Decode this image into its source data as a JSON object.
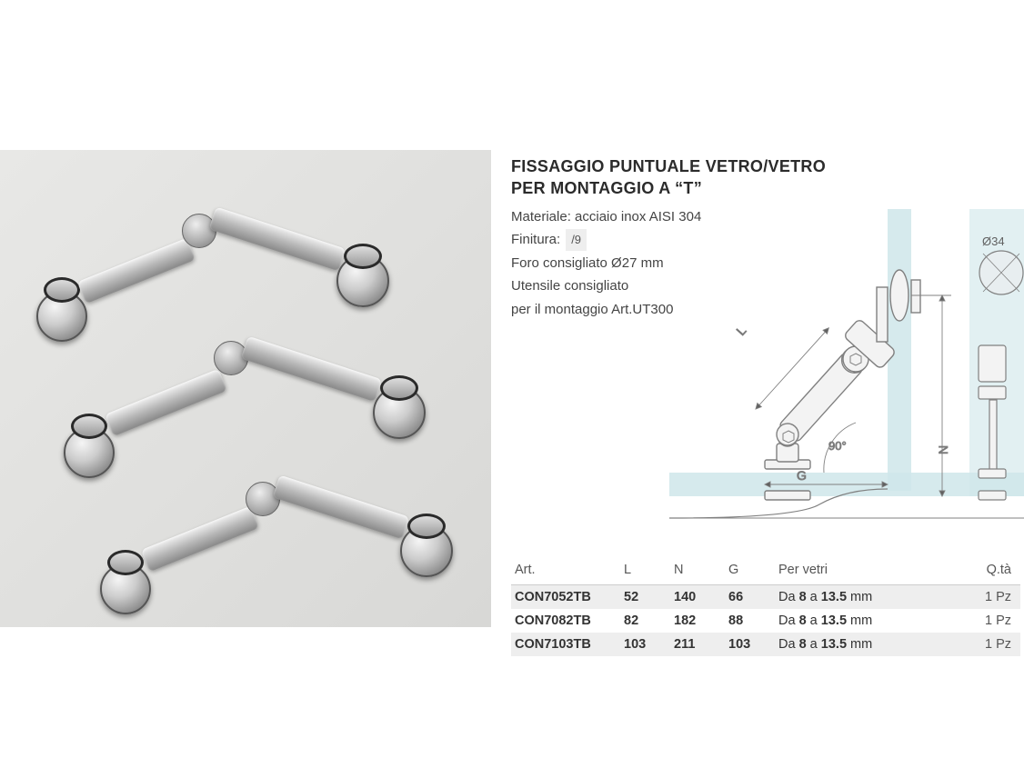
{
  "title_line1": "FISSAGGIO PUNTUALE VETRO/VETRO",
  "title_line2": "PER MONTAGGIO A “T”",
  "material_label": "Materiale: acciaio inox AISI 304",
  "finish_label": "Finitura:",
  "finish_value": "/9",
  "hole_label": "Foro consigliato Ø27 mm",
  "tool_line1": "Utensile consigliato",
  "tool_line2": "per il montaggio Art.UT300",
  "diagram": {
    "angle_label": "90°",
    "dim_L": "L",
    "dim_G": "G",
    "dim_N": "N",
    "dia_label": "Ø34",
    "glass_color": "#cfe6ea",
    "line_color": "#808080",
    "bg": "#ffffff"
  },
  "table": {
    "columns": [
      "Art.",
      "L",
      "N",
      "G",
      "Per vetri",
      "Q.tà"
    ],
    "rows": [
      {
        "art": "CON7052TB",
        "L": "52",
        "N": "140",
        "G": "66",
        "glass_pre": "Da ",
        "glass_b1": "8",
        "glass_mid": " a ",
        "glass_b2": "13.5",
        "glass_post": " mm",
        "qty": "1 Pz"
      },
      {
        "art": "CON7082TB",
        "L": "82",
        "N": "182",
        "G": "88",
        "glass_pre": "Da ",
        "glass_b1": "8",
        "glass_mid": " a ",
        "glass_b2": "13.5",
        "glass_post": " mm",
        "qty": "1 Pz"
      },
      {
        "art": "CON7103TB",
        "L": "103",
        "N": "211",
        "G": "103",
        "glass_pre": "Da ",
        "glass_b1": "8",
        "glass_mid": " a ",
        "glass_b2": "13.5",
        "glass_post": " mm",
        "qty": "1 Pz"
      }
    ],
    "header_bg": "#ffffff",
    "row_alt_bg": "#eeeeee"
  },
  "photo": {
    "bg_gradient_from": "#e8e8e6",
    "bg_gradient_to": "#d8d8d6"
  }
}
